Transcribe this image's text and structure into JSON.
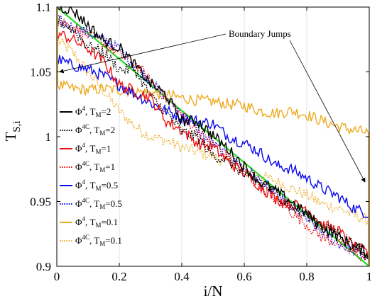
{
  "chart_data": {
    "type": "line",
    "title": "",
    "xlabel": "i/N",
    "ylabel": {
      "main": "T",
      "sub": "S,i"
    },
    "xlim": [
      0,
      1
    ],
    "ylim": [
      0.9,
      1.1
    ],
    "x_ticks": [
      0,
      0.2,
      0.4,
      0.6,
      0.8,
      1
    ],
    "x_tick_labels": [
      "0",
      "0.2",
      "0.4",
      "0.6",
      "0.8",
      "1"
    ],
    "y_ticks": [
      0.9,
      0.95,
      1.0,
      1.05,
      1.1
    ],
    "y_tick_labels": [
      "0.9",
      "0.95",
      "1",
      "1.05",
      "1.1"
    ],
    "grid": "vertical",
    "legend_position": "left",
    "annotation": {
      "text": "Boundary Jumps",
      "arrows_to": [
        [
          0.0,
          1.05
        ],
        [
          1.0,
          0.965
        ]
      ]
    },
    "reference_line": {
      "name": "",
      "color": "#22dd22",
      "x": [
        0,
        1
      ],
      "y": [
        1.1,
        0.9
      ]
    },
    "series": [
      {
        "model": "4",
        "model_sup": "",
        "tm_value": "2",
        "color": "#000000",
        "style": "solid",
        "x": [
          0,
          0.05,
          0.1,
          0.15,
          0.2,
          0.25,
          0.3,
          0.35,
          0.4,
          0.45,
          0.5,
          0.55,
          0.6,
          0.65,
          0.7,
          0.75,
          0.8,
          0.85,
          0.9,
          0.95,
          1.0
        ],
        "y": [
          1.1,
          1.098,
          1.086,
          1.074,
          1.069,
          1.055,
          1.041,
          1.032,
          1.012,
          1.012,
          1.001,
          0.99,
          0.977,
          0.965,
          0.958,
          0.95,
          0.94,
          0.93,
          0.923,
          0.915,
          0.91
        ]
      },
      {
        "model": "4",
        "model_sup": "C",
        "tm_value": "2",
        "color": "#000000",
        "style": "dotted",
        "x": [
          0,
          0.05,
          0.1,
          0.15,
          0.2,
          0.25,
          0.3,
          0.35,
          0.4,
          0.45,
          0.5,
          0.55,
          0.6,
          0.65,
          0.7,
          0.75,
          0.8,
          0.85,
          0.9,
          0.95,
          1.0
        ],
        "y": [
          1.09,
          1.083,
          1.07,
          1.065,
          1.052,
          1.052,
          1.031,
          1.019,
          1.004,
          1.0,
          0.985,
          0.982,
          0.97,
          0.964,
          0.957,
          0.945,
          0.94,
          0.93,
          0.926,
          0.917,
          0.905
        ]
      },
      {
        "model": "4",
        "model_sup": "",
        "tm_value": "1",
        "color": "#ee1111",
        "style": "solid",
        "x": [
          0,
          0.05,
          0.1,
          0.15,
          0.2,
          0.25,
          0.3,
          0.35,
          0.4,
          0.45,
          0.5,
          0.55,
          0.6,
          0.65,
          0.7,
          0.75,
          0.8,
          0.85,
          0.9,
          0.95,
          1.0
        ],
        "y": [
          1.08,
          1.075,
          1.068,
          1.058,
          1.04,
          1.035,
          1.03,
          1.012,
          1.005,
          0.995,
          0.992,
          0.98,
          0.972,
          0.962,
          0.952,
          0.948,
          0.945,
          0.932,
          0.928,
          0.915,
          0.91
        ]
      },
      {
        "model": "4",
        "model_sup": "C",
        "tm_value": "1",
        "color": "#ee1111",
        "style": "dotted",
        "x": [
          0,
          0.05,
          0.1,
          0.15,
          0.2,
          0.25,
          0.3,
          0.35,
          0.4,
          0.45,
          0.5,
          0.55,
          0.6,
          0.65,
          0.7,
          0.75,
          0.8,
          0.85,
          0.9,
          0.95,
          1.0
        ],
        "y": [
          1.09,
          1.085,
          1.078,
          1.072,
          1.063,
          1.057,
          1.043,
          1.03,
          1.017,
          1.005,
          0.995,
          0.984,
          0.972,
          0.962,
          0.952,
          0.942,
          0.932,
          0.922,
          0.918,
          0.91,
          0.905
        ]
      },
      {
        "model": "4",
        "model_sup": "",
        "tm_value": "0.5",
        "color": "#0a0aee",
        "style": "solid",
        "x": [
          0,
          0.05,
          0.1,
          0.15,
          0.2,
          0.25,
          0.3,
          0.35,
          0.4,
          0.45,
          0.5,
          0.55,
          0.6,
          0.65,
          0.7,
          0.75,
          0.8,
          0.85,
          0.9,
          0.95,
          1.0
        ],
        "y": [
          1.06,
          1.055,
          1.052,
          1.047,
          1.04,
          1.033,
          1.026,
          1.02,
          1.015,
          1.012,
          1.01,
          1.0,
          0.995,
          0.988,
          0.978,
          0.975,
          0.968,
          0.96,
          0.954,
          0.945,
          0.94
        ]
      },
      {
        "model": "4",
        "model_sup": "C",
        "tm_value": "0.5",
        "color": "#0a0aee",
        "style": "dotted",
        "x": [
          0,
          0.05,
          0.1,
          0.15,
          0.2,
          0.25,
          0.3,
          0.35,
          0.4,
          0.45,
          0.5,
          0.55,
          0.6,
          0.65,
          0.7,
          0.75,
          0.8,
          0.85,
          0.9,
          0.95,
          1.0
        ],
        "y": [
          1.09,
          1.085,
          1.08,
          1.075,
          1.068,
          1.055,
          1.043,
          1.03,
          1.018,
          1.005,
          0.994,
          0.984,
          0.976,
          0.966,
          0.956,
          0.946,
          0.936,
          0.926,
          0.918,
          0.912,
          0.905
        ]
      },
      {
        "model": "4",
        "model_sup": "",
        "tm_value": "0.1",
        "color": "#eeaa22",
        "style": "solid",
        "x": [
          0,
          0.05,
          0.1,
          0.15,
          0.2,
          0.25,
          0.3,
          0.35,
          0.4,
          0.45,
          0.5,
          0.55,
          0.6,
          0.65,
          0.7,
          0.75,
          0.8,
          0.85,
          0.9,
          0.95,
          1.0
        ],
        "y": [
          1.04,
          1.037,
          1.036,
          1.037,
          1.036,
          1.035,
          1.034,
          1.032,
          1.03,
          1.028,
          1.027,
          1.025,
          1.024,
          1.02,
          1.018,
          1.02,
          1.017,
          1.012,
          1.008,
          1.005,
          1.003
        ]
      },
      {
        "model": "4",
        "model_sup": "C",
        "tm_value": "0.1",
        "color": "#eeaa22",
        "style": "dotted",
        "x": [
          0,
          0.05,
          0.1,
          0.15,
          0.2,
          0.25,
          0.3,
          0.35,
          0.4,
          0.45,
          0.5,
          0.55,
          0.6,
          0.65,
          0.7,
          0.75,
          0.8,
          0.85,
          0.9,
          0.95,
          1.0
        ],
        "y": [
          1.075,
          1.065,
          1.05,
          1.035,
          1.02,
          1.008,
          1.0,
          0.997,
          0.992,
          0.988,
          0.985,
          0.98,
          0.975,
          0.97,
          0.966,
          0.96,
          0.955,
          0.948,
          0.945,
          0.94,
          0.935
        ]
      }
    ]
  }
}
